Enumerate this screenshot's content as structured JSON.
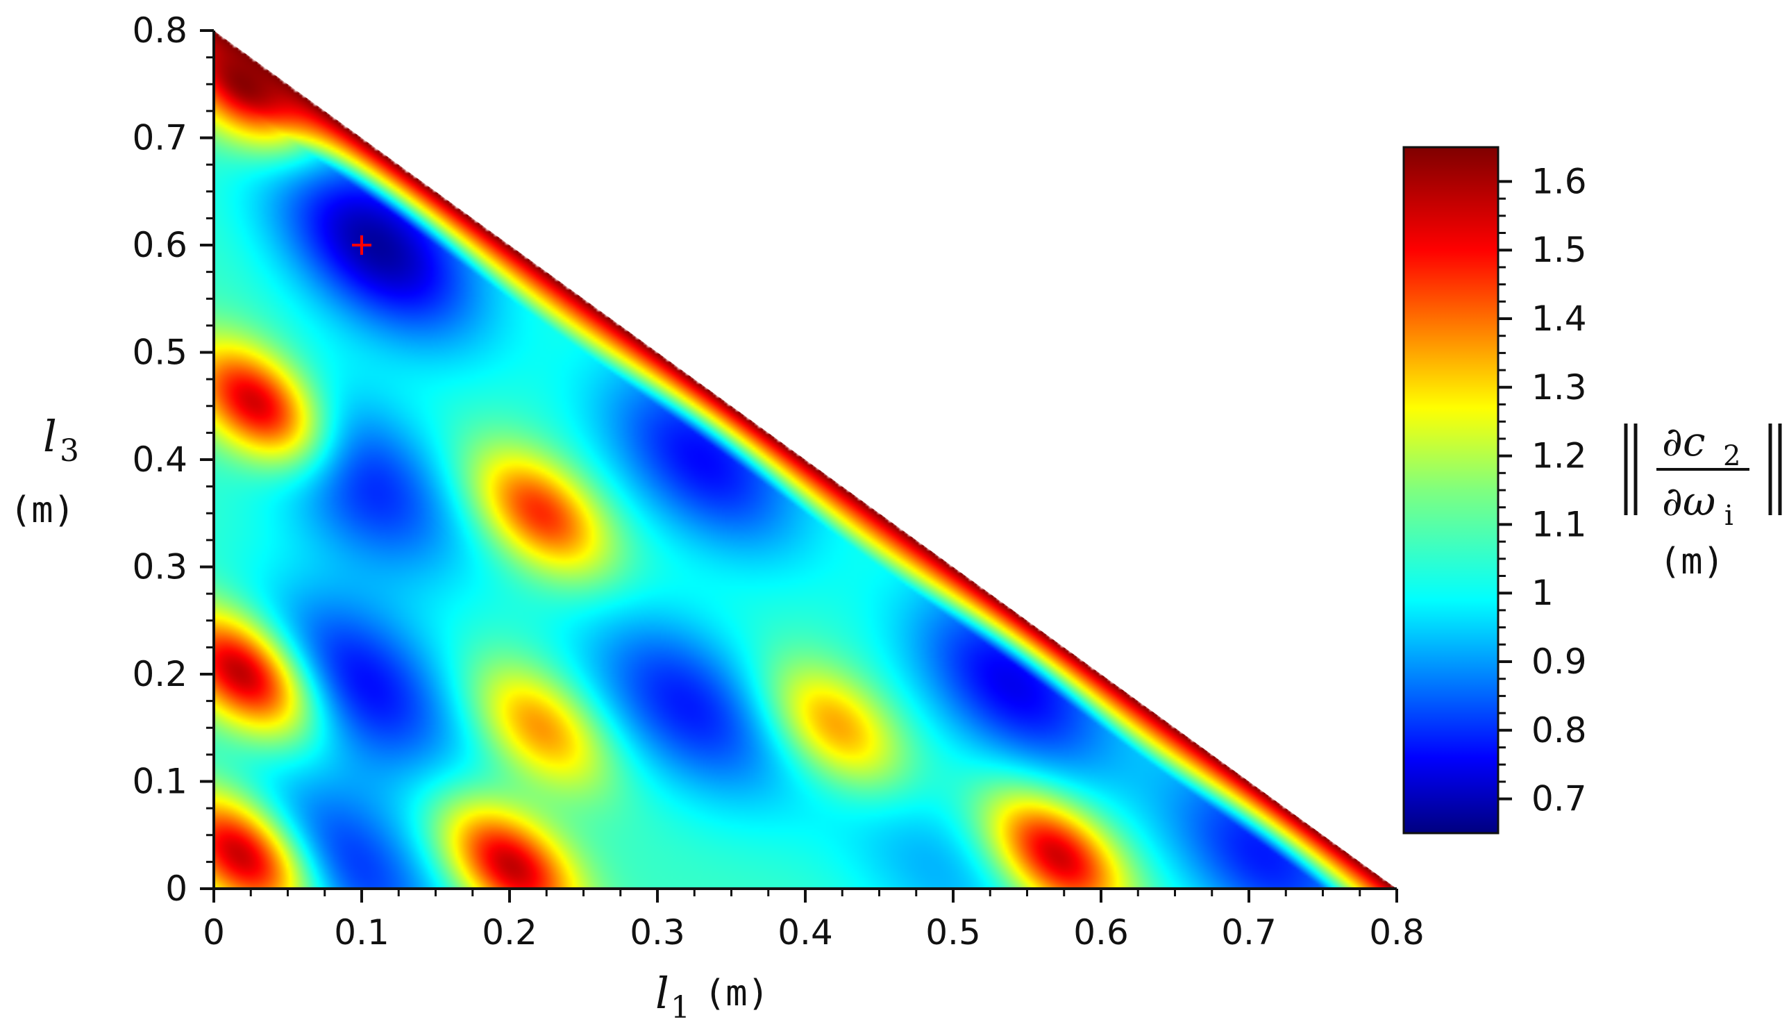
{
  "chart_data": {
    "type": "heatmap",
    "domain": "triangle l1 + l3 <= 0.8",
    "x": {
      "symbol": "l",
      "subscript": "1",
      "unit": "(m)",
      "range": [
        0,
        0.8
      ],
      "ticks": [
        "0",
        "0.1",
        "0.2",
        "0.3",
        "0.4",
        "0.5",
        "0.6",
        "0.7",
        "0.8"
      ]
    },
    "y": {
      "symbol": "l",
      "subscript": "3",
      "unit": "(m)",
      "range": [
        0,
        0.8
      ],
      "ticks": [
        "0",
        "0.1",
        "0.2",
        "0.3",
        "0.4",
        "0.5",
        "0.6",
        "0.7",
        "0.8"
      ]
    },
    "colorbar": {
      "range": [
        0.65,
        1.65
      ],
      "ticks": [
        "0.7",
        "0.8",
        "0.9",
        "1",
        "1.1",
        "1.2",
        "1.3",
        "1.4",
        "1.5",
        "1.6"
      ],
      "label_numerator": "∂c",
      "label_numerator_sub": "2",
      "label_denominator": "∂ω",
      "label_denominator_sub": "i",
      "unit": "(m)",
      "colormap": "jet"
    },
    "marker": {
      "x": 0.1,
      "y": 0.6,
      "symbol": "+",
      "color": "#ff0000"
    },
    "regions": [
      {
        "kind": "min",
        "x": 0.11,
        "y": 0.6,
        "value": 0.68
      },
      {
        "kind": "min",
        "x": 0.1,
        "y": 0.38,
        "value": 0.8
      },
      {
        "kind": "min",
        "x": 0.1,
        "y": 0.19,
        "value": 0.78
      },
      {
        "kind": "min",
        "x": 0.09,
        "y": 0.02,
        "value": 0.82
      },
      {
        "kind": "min",
        "x": 0.32,
        "y": 0.17,
        "value": 0.8
      },
      {
        "kind": "min",
        "x": 0.33,
        "y": 0.4,
        "value": 0.78
      },
      {
        "kind": "min",
        "x": 0.54,
        "y": 0.19,
        "value": 0.76
      },
      {
        "kind": "min",
        "x": 0.71,
        "y": 0.03,
        "value": 0.8
      },
      {
        "kind": "min",
        "x": 0.49,
        "y": 0.02,
        "value": 0.95
      },
      {
        "kind": "max",
        "x": 0.22,
        "y": 0.35,
        "value": 1.5
      },
      {
        "kind": "max",
        "x": 0.22,
        "y": 0.15,
        "value": 1.4
      },
      {
        "kind": "max",
        "x": 0.42,
        "y": 0.15,
        "value": 1.4
      },
      {
        "kind": "max",
        "x": 0.2,
        "y": 0.02,
        "value": 1.6
      },
      {
        "kind": "max",
        "x": 0.57,
        "y": 0.03,
        "value": 1.6
      },
      {
        "kind": "max",
        "x": 0.02,
        "y": 0.2,
        "value": 1.65
      },
      {
        "kind": "max",
        "x": 0.03,
        "y": 0.45,
        "value": 1.65
      },
      {
        "kind": "max",
        "x": 0.02,
        "y": 0.75,
        "value": 1.65
      },
      {
        "kind": "max",
        "x": 0.02,
        "y": 0.03,
        "value": 1.65
      }
    ]
  },
  "colors": {
    "marker": "#ff0000",
    "axis": "#111111",
    "background": "#ffffff"
  }
}
